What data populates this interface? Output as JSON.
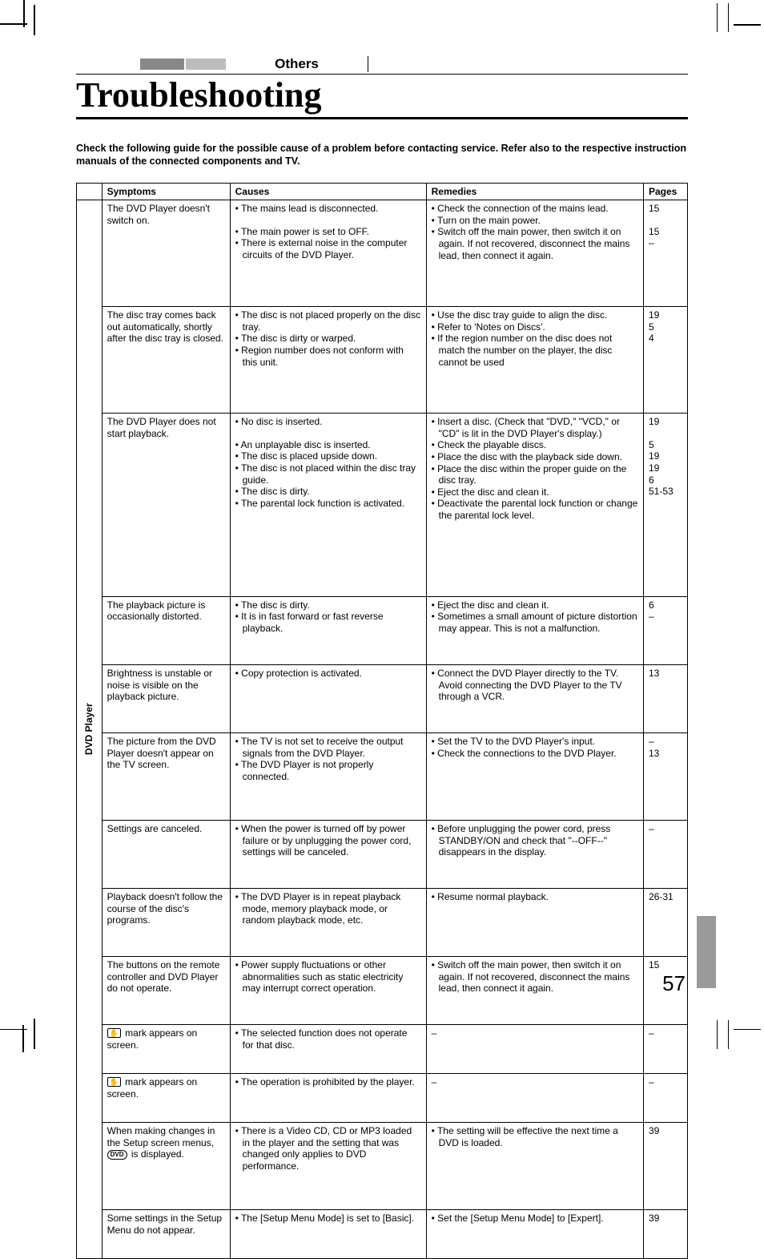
{
  "section_label": "Others",
  "title": "Troubleshooting",
  "intro": "Check the following guide for the possible cause of a problem before contacting service. Refer also to the respective instruction manuals of the connected components and TV.",
  "headers": {
    "symptoms": "Symptoms",
    "causes": "Causes",
    "remedies": "Remedies",
    "pages": "Pages"
  },
  "category_label": "DVD Player",
  "page_number": "57",
  "rows": [
    {
      "symptom": "The DVD Player doesn't switch on.",
      "causes": [
        "The mains lead is disconnected.",
        "The main power is set to OFF.",
        "There is external noise in the computer circuits of the DVD Player."
      ],
      "remedies": [
        "Check the connection of the mains lead.",
        "Turn on the main power.",
        "Switch off the main power, then switch it on again. If not recovered, disconnect the mains lead, then connect it again."
      ],
      "pages": [
        "15",
        "15",
        "–"
      ],
      "cause_spacer_after": 0
    },
    {
      "symptom": "The disc tray comes back out automatically, shortly after the disc tray is closed.",
      "causes": [
        "The disc is not placed properly on the disc tray.",
        "The disc is dirty or warped.",
        "Region number does not conform with this unit."
      ],
      "remedies": [
        "Use the disc tray guide to align the disc.",
        "Refer to 'Notes on Discs'.",
        "If the region number on the disc does not match the number on the player, the disc cannot be used"
      ],
      "pages": [
        "19",
        "5",
        "4"
      ]
    },
    {
      "symptom": "The DVD Player does not start playback.",
      "causes": [
        "No disc is inserted.",
        "An unplayable disc is inserted.",
        "The disc is placed upside down.",
        "The disc is not placed within the disc tray guide.",
        "The disc is dirty.",
        "The parental lock function is activated."
      ],
      "remedies": [
        "Insert a disc. (Check that \"DVD,\" \"VCD,\" or \"CD\" is lit in the DVD Player's display.)",
        "Check the playable discs.",
        "Place the disc with the playback side down.",
        "Place the disc within the proper guide on the disc tray.",
        "Eject the disc and clean it.",
        "Deactivate the parental lock function or change the parental lock level."
      ],
      "pages": [
        "19",
        "5",
        "19",
        "19",
        "6",
        "51-53"
      ],
      "cause_spacer_after": 0
    },
    {
      "symptom": "The playback picture is occasionally distorted.",
      "causes": [
        "The disc is dirty.",
        "It is in fast forward or fast reverse playback."
      ],
      "remedies": [
        "Eject the disc and clean it.",
        "Sometimes a small amount of picture distortion may appear. This is not a malfunction."
      ],
      "pages": [
        "6",
        "–"
      ]
    },
    {
      "symptom": "Brightness is unstable or noise is visible on the playback picture.",
      "causes": [
        "Copy protection is activated."
      ],
      "remedies": [
        "Connect the DVD Player directly to the TV. Avoid connecting the DVD Player to the TV through a VCR."
      ],
      "pages": [
        "13"
      ]
    },
    {
      "symptom": "The picture from the DVD Player doesn't appear on the TV screen.",
      "causes": [
        "The TV is not set to receive the output signals from the DVD Player.",
        "The DVD Player is not properly connected."
      ],
      "remedies": [
        "Set the TV to the DVD Player's input.",
        "Check the connections to the DVD Player."
      ],
      "pages": [
        "–",
        "13"
      ]
    },
    {
      "symptom": "Settings are canceled.",
      "causes": [
        "When the power is turned off by power failure or by unplugging the power cord, settings will be canceled."
      ],
      "remedies": [
        "Before unplugging the power cord, press STANDBY/ON and check that \"--OFF--\" disappears in the display."
      ],
      "pages": [
        "–"
      ]
    },
    {
      "symptom": "Playback doesn't follow the course of the disc's programs.",
      "causes": [
        "The DVD Player is in repeat playback mode, memory playback mode, or random playback mode, etc."
      ],
      "remedies": [
        "Resume normal playback."
      ],
      "pages": [
        "26-31"
      ]
    },
    {
      "symptom": "The buttons on the remote controller and DVD Player do not operate.",
      "causes": [
        "Power supply fluctuations or other abnormalities such as static electricity may interrupt correct operation."
      ],
      "remedies": [
        "Switch off the main power, then switch it on again. If not recovered, disconnect the mains lead, then connect it again."
      ],
      "pages": [
        "15"
      ]
    },
    {
      "symptom_html": "hand1",
      "symptom": " mark appears on screen.",
      "causes": [
        "The selected function does not operate for that disc."
      ],
      "remedies_plain": "–",
      "pages": [
        "–"
      ]
    },
    {
      "symptom_html": "hand2",
      "symptom": " mark appears on screen.",
      "causes": [
        "The operation is prohibited by the player."
      ],
      "remedies_plain": "–",
      "pages": [
        "–"
      ]
    },
    {
      "symptom_html": "dvd",
      "symptom_pre": "When making changes in the Setup screen menus, ",
      "symptom_post": " is displayed.",
      "causes": [
        "There is a Video CD, CD or MP3 loaded in the player and the setting that was changed only applies to DVD performance."
      ],
      "remedies": [
        "The setting will be effective the next time a DVD is loaded."
      ],
      "pages": [
        "39"
      ]
    },
    {
      "symptom": "Some settings in the Setup Menu do not appear.",
      "causes": [
        "The [Setup Menu Mode] is set to [Basic]."
      ],
      "remedies": [
        "Set the [Setup Menu Mode] to [Expert]."
      ],
      "pages": [
        "39"
      ]
    }
  ]
}
